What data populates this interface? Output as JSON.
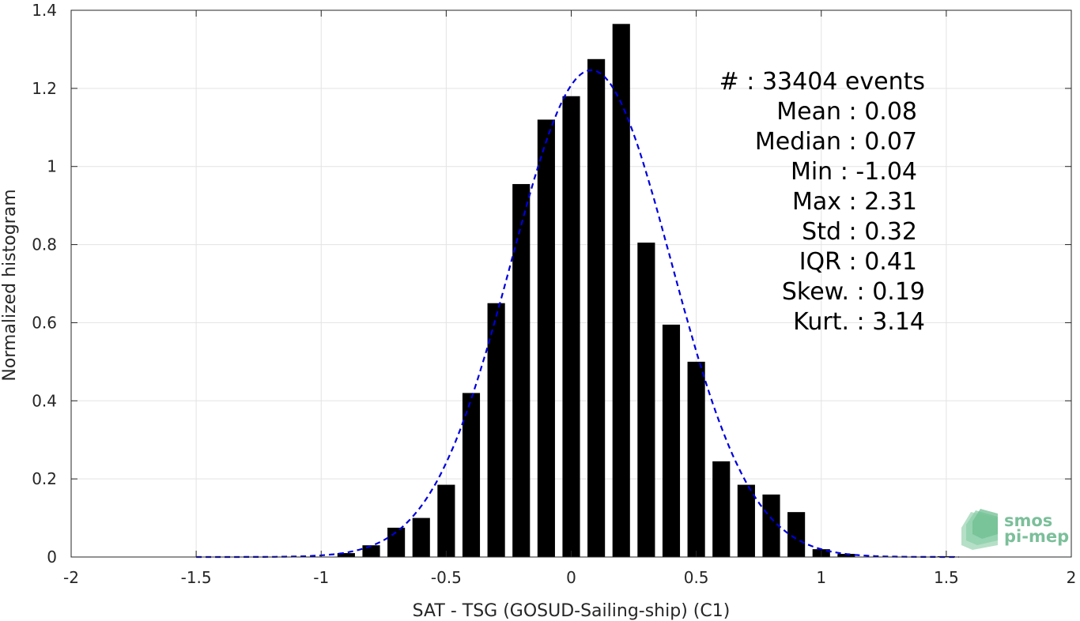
{
  "chart_data": {
    "type": "bar",
    "xlabel": "SAT - TSG (GOSUD-Sailing-ship) (C1)",
    "ylabel": "Normalized histogram",
    "xlim": [
      -2,
      2
    ],
    "ylim": [
      0,
      1.4
    ],
    "grid": true,
    "xticks": [
      -2,
      -1.5,
      -1,
      -0.5,
      0,
      0.5,
      1,
      1.5,
      2
    ],
    "xtick_labels": [
      "-2",
      "-1.5",
      "-1",
      "-0.5",
      "0",
      "0.5",
      "1",
      "1.5",
      "2"
    ],
    "yticks": [
      0,
      0.2,
      0.4,
      0.6,
      0.8,
      1,
      1.2,
      1.4
    ],
    "ytick_labels": [
      "0",
      "0.2",
      "0.4",
      "0.6",
      "0.8",
      "1",
      "1.2",
      "1.4"
    ],
    "bar_color": "#000000",
    "bar_width": 0.07,
    "bars": {
      "x": [
        -0.9,
        -0.8,
        -0.7,
        -0.6,
        -0.5,
        -0.4,
        -0.3,
        -0.2,
        -0.1,
        0.0,
        0.1,
        0.2,
        0.3,
        0.4,
        0.5,
        0.6,
        0.7,
        0.8,
        0.9,
        1.0,
        1.1,
        1.5
      ],
      "values": [
        0.01,
        0.03,
        0.075,
        0.1,
        0.185,
        0.42,
        0.65,
        0.955,
        1.12,
        1.18,
        1.275,
        1.365,
        0.805,
        0.595,
        0.5,
        0.245,
        0.185,
        0.16,
        0.115,
        0.02,
        0.008,
        0.002
      ]
    },
    "fit_curve": {
      "style": "dashed",
      "color": "#0000dd",
      "mean": 0.08,
      "std": 0.32,
      "x_range": [
        -1.5,
        1.55
      ]
    },
    "annotations": [
      {
        "key": "#  ",
        "value": ": 33404 events"
      },
      {
        "key": "Mean ",
        "value": ": 0.08"
      },
      {
        "key": "Median ",
        "value": ": 0.07"
      },
      {
        "key": "Min ",
        "value": ": -1.04"
      },
      {
        "key": "Max ",
        "value": ": 2.31"
      },
      {
        "key": "Std ",
        "value": ": 0.32"
      },
      {
        "key": "IQR ",
        "value": ": 0.41"
      },
      {
        "key": "Skew. ",
        "value": ": 0.19"
      },
      {
        "key": "Kurt. ",
        "value": ": 3.14"
      }
    ]
  },
  "logo": {
    "line1": "smos",
    "line2": "pi-mep",
    "color": "#7bbf9a"
  }
}
